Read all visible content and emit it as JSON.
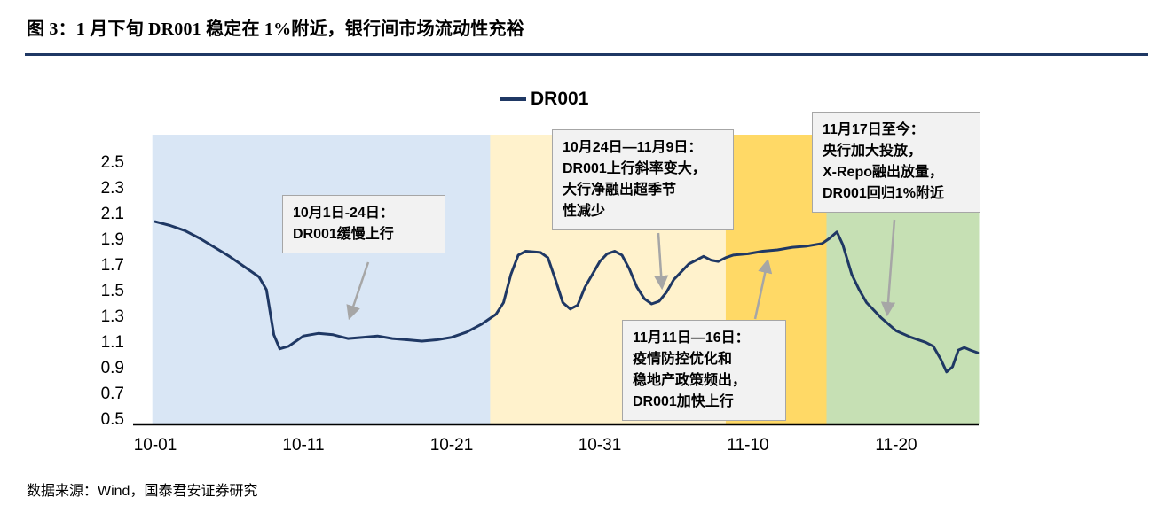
{
  "header": {
    "title": "图 3：1 月下旬 DR001 稳定在 1%附近，银行间市场流动性充裕"
  },
  "footer": {
    "source": "数据来源：Wind，国泰君安证券研究"
  },
  "legend": {
    "label": "DR001"
  },
  "colors": {
    "line": "#1f3864",
    "title_rule": "#1f3864",
    "region_blue": "#d9e6f5",
    "region_light_yellow": "#fff2cc",
    "region_yellow": "#ffd966",
    "region_green": "#c6e0b4",
    "annotation_border": "#a6a6a6",
    "annotation_bg": "#f2f2f2",
    "arrow": "#a6a6a6"
  },
  "chart_data": {
    "type": "line",
    "title": "DR001",
    "xlabel": "",
    "ylabel": "",
    "ylim": [
      0.5,
      2.5
    ],
    "grid": false,
    "legend_position": "top-center",
    "y_ticks": [
      0.5,
      0.7,
      0.9,
      1.1,
      1.3,
      1.5,
      1.7,
      1.9,
      2.1,
      2.3,
      2.5
    ],
    "x_tick_labels": [
      "10-01",
      "10-11",
      "10-21",
      "10-31",
      "11-10",
      "11-20"
    ],
    "x_tick_days": [
      0,
      10,
      20,
      30,
      40,
      50
    ],
    "x_day0_date": "10-01",
    "series": [
      {
        "name": "DR001",
        "x_days": [
          0,
          1,
          2,
          3,
          4,
          5,
          6,
          7,
          7.5,
          8,
          8.4,
          9,
          10,
          11,
          12,
          13,
          14,
          15,
          16,
          17,
          18,
          19,
          20,
          21,
          22,
          23,
          23.5,
          24,
          24.5,
          25,
          26,
          26.5,
          27,
          27.5,
          28,
          28.5,
          29,
          30,
          30.5,
          31,
          31.5,
          32,
          32.5,
          33,
          33.5,
          34,
          34.5,
          35,
          36,
          37,
          37.5,
          38,
          38.5,
          39,
          40,
          41,
          42,
          43,
          44,
          45,
          45.5,
          46,
          46.4,
          47,
          47.5,
          48,
          49,
          50,
          51,
          52,
          52.5,
          53,
          53.4,
          53.8,
          54.2,
          54.6,
          55,
          55.5
        ],
        "values": [
          2.03,
          2.0,
          1.96,
          1.9,
          1.83,
          1.76,
          1.68,
          1.6,
          1.5,
          1.15,
          1.04,
          1.06,
          1.14,
          1.16,
          1.15,
          1.12,
          1.13,
          1.14,
          1.12,
          1.11,
          1.1,
          1.11,
          1.13,
          1.17,
          1.23,
          1.31,
          1.4,
          1.62,
          1.77,
          1.8,
          1.79,
          1.75,
          1.58,
          1.4,
          1.35,
          1.38,
          1.52,
          1.72,
          1.78,
          1.8,
          1.77,
          1.66,
          1.52,
          1.43,
          1.39,
          1.41,
          1.48,
          1.58,
          1.7,
          1.76,
          1.73,
          1.72,
          1.75,
          1.77,
          1.78,
          1.8,
          1.81,
          1.83,
          1.84,
          1.86,
          1.9,
          1.95,
          1.85,
          1.62,
          1.5,
          1.4,
          1.28,
          1.18,
          1.13,
          1.09,
          1.06,
          0.96,
          0.86,
          0.9,
          1.03,
          1.05,
          1.03,
          1.01
        ]
      }
    ],
    "regions": [
      {
        "label": "10月1日-24日",
        "start_day": -0.2,
        "end_day": 22.6,
        "color_key": "region_blue"
      },
      {
        "label": "10月24日—11月9日",
        "start_day": 22.6,
        "end_day": 38.5,
        "color_key": "region_light_yellow"
      },
      {
        "label": "11月11日—16日",
        "start_day": 38.5,
        "end_day": 45.3,
        "color_key": "region_yellow"
      },
      {
        "label": "11月17日至今",
        "start_day": 45.3,
        "end_day": 55.6,
        "color_key": "region_green"
      }
    ],
    "annotations": [
      {
        "text": "10月1日-24日：\nDR001缓慢上行"
      },
      {
        "text": "10月24日—11月9日：\nDR001上行斜率变大，\n大行净融出超季节\n性减少"
      },
      {
        "text": "11月11日—16日：\n疫情防控优化和\n稳地产政策频出，\nDR001加快上行"
      },
      {
        "text": "11月17日至今：\n央行加大投放，\nX-Repo融出放量，\nDR001回归1%附近"
      }
    ]
  }
}
